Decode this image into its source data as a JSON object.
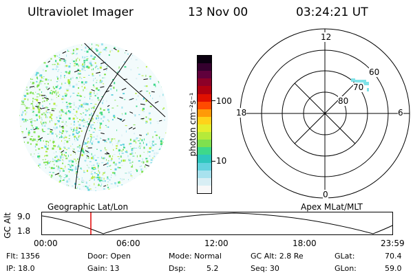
{
  "header": {
    "instrument": "Ultraviolet Imager",
    "date": "13 Nov 00",
    "time": "03:24:21 UT"
  },
  "colorbar": {
    "unit_label": "photon cm⁻²s⁻¹",
    "ticks": [
      "100",
      "10"
    ],
    "colors": [
      "#f8f8f8",
      "#d8eef4",
      "#a8e2ee",
      "#63d3de",
      "#2fc7bd",
      "#3ed88a",
      "#7fe04e",
      "#b6ea3a",
      "#e5ee2e",
      "#ffd21a",
      "#ff9a08",
      "#ff4a00",
      "#e01000",
      "#b00010",
      "#8c0028",
      "#60003c",
      "#35002e",
      "#0b0010"
    ]
  },
  "polar": {
    "mlt_labels": {
      "top": "12",
      "left": "18",
      "right": "6",
      "bottom": "0"
    },
    "lat_labels": [
      "60",
      "70",
      "80"
    ]
  },
  "timeline": {
    "left_label": "Geographic Lat/Lon",
    "right_label": "Apex MLat/MLT",
    "axis_title": "GC Alt",
    "y_ticks": [
      "9.0",
      "1.8"
    ],
    "x_ticks": [
      "00:00",
      "06:00",
      "12:00",
      "18:00",
      "23:59"
    ],
    "marker_color": "#e00000"
  },
  "info": {
    "flt": "Flt: 1356",
    "ip": "IP: 18.0",
    "door": "Door: Open",
    "gain": "Gain: 13",
    "mode": "Mode: Normal",
    "dsp_label": "Dsp:",
    "dsp_value": "5.2",
    "gc_alt": "GC Alt: 2.8 Re",
    "seq": "Seq: 30",
    "glat_label": "GLat:",
    "glat_value": "70.4",
    "glon_label": "GLon:",
    "glon_value": "59.0"
  }
}
